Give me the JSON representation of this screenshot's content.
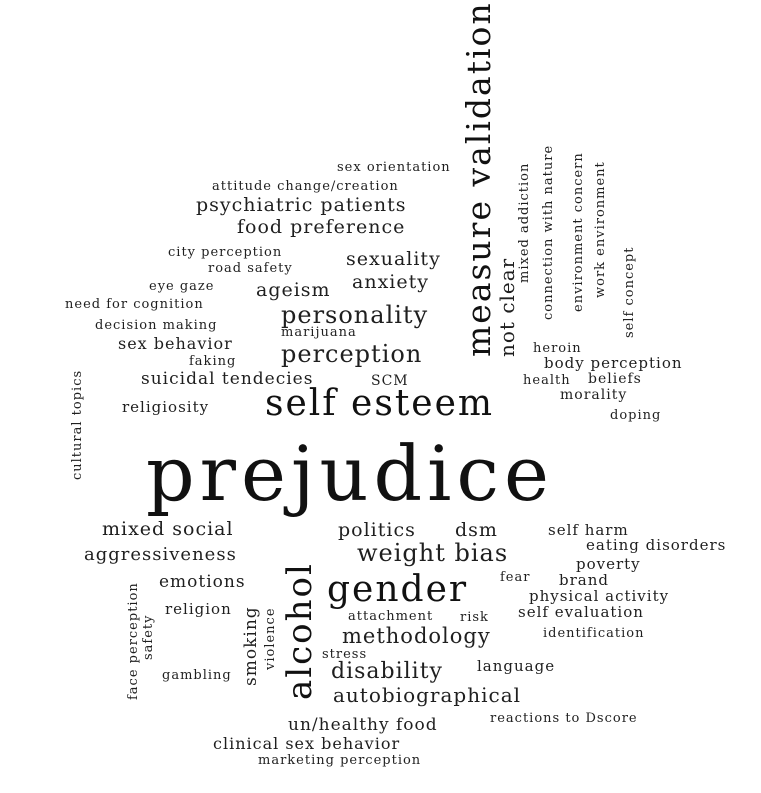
{
  "words": [
    {
      "id": "prejudice",
      "text": "prejudice"
    },
    {
      "id": "self-esteem",
      "text": "self esteem"
    },
    {
      "id": "measure-validation",
      "text": "measure validation"
    },
    {
      "id": "gender",
      "text": "gender"
    },
    {
      "id": "alcohol",
      "text": "alcohol"
    },
    {
      "id": "weight-bias",
      "text": "weight bias"
    },
    {
      "id": "perception",
      "text": "perception"
    },
    {
      "id": "personality",
      "text": "personality"
    },
    {
      "id": "methodology",
      "text": "methodology"
    },
    {
      "id": "disability",
      "text": "disability"
    },
    {
      "id": "autobiographical",
      "text": "autobiographical"
    },
    {
      "id": "psychiatric-patients",
      "text": "psychiatric patients"
    },
    {
      "id": "food-preference",
      "text": "food preference"
    },
    {
      "id": "sexuality",
      "text": "sexuality"
    },
    {
      "id": "anxiety",
      "text": "anxiety"
    },
    {
      "id": "ageism",
      "text": "ageism"
    },
    {
      "id": "suicidal-tendecies",
      "text": "suicidal tendecies"
    },
    {
      "id": "mixed-social",
      "text": "mixed social"
    },
    {
      "id": "politics",
      "text": "politics"
    },
    {
      "id": "dsm",
      "text": "dsm"
    },
    {
      "id": "aggressiveness",
      "text": "aggressiveness"
    },
    {
      "id": "emotions",
      "text": "emotions"
    },
    {
      "id": "not-clear",
      "text": "not clear"
    },
    {
      "id": "smoking",
      "text": "smoking"
    },
    {
      "id": "un-healthy-food",
      "text": "un/healthy food"
    },
    {
      "id": "clinical-sex-behavior",
      "text": "clinical sex behavior"
    },
    {
      "id": "sex-behavior",
      "text": "sex behavior"
    },
    {
      "id": "religiosity",
      "text": "religiosity"
    },
    {
      "id": "religion",
      "text": "religion"
    },
    {
      "id": "language",
      "text": "language"
    },
    {
      "id": "eating-disorders",
      "text": "eating disorders"
    },
    {
      "id": "self-harm",
      "text": "self harm"
    },
    {
      "id": "poverty",
      "text": "poverty"
    },
    {
      "id": "brand",
      "text": "brand"
    },
    {
      "id": "physical-activity",
      "text": "physical activity"
    },
    {
      "id": "self-evaluation",
      "text": "self evaluation"
    },
    {
      "id": "body-perception",
      "text": "body perception"
    },
    {
      "id": "beliefs",
      "text": "beliefs"
    },
    {
      "id": "morality",
      "text": "morality"
    },
    {
      "id": "attitude-change-creation",
      "text": "attitude change/creation"
    },
    {
      "id": "sex-orientation",
      "text": "sex orientation"
    },
    {
      "id": "city-perception",
      "text": "city perception"
    },
    {
      "id": "road-safety",
      "text": "road safety"
    },
    {
      "id": "eye-gaze",
      "text": "eye gaze"
    },
    {
      "id": "need-for-cognition",
      "text": "need for cognition"
    },
    {
      "id": "decision-making",
      "text": "decision making"
    },
    {
      "id": "marijuana",
      "text": "marijuana"
    },
    {
      "id": "faking",
      "text": "faking"
    },
    {
      "id": "scm",
      "text": "SCM"
    },
    {
      "id": "heroin",
      "text": "heroin"
    },
    {
      "id": "health",
      "text": "health"
    },
    {
      "id": "doping",
      "text": "doping"
    },
    {
      "id": "fear",
      "text": "fear"
    },
    {
      "id": "attachment",
      "text": "attachment"
    },
    {
      "id": "risk",
      "text": "risk"
    },
    {
      "id": "identification",
      "text": "identification"
    },
    {
      "id": "stress",
      "text": "stress"
    },
    {
      "id": "gambling",
      "text": "gambling"
    },
    {
      "id": "reactions-to-dscore",
      "text": "reactions to Dscore"
    },
    {
      "id": "marketing-perception",
      "text": "marketing perception"
    },
    {
      "id": "mixed-addiction",
      "text": "mixed addiction"
    },
    {
      "id": "connection-with-nature",
      "text": "connection with nature"
    },
    {
      "id": "environment-concern",
      "text": "environment concern"
    },
    {
      "id": "work-environment",
      "text": "work environment"
    },
    {
      "id": "self-concept",
      "text": "self concept"
    },
    {
      "id": "cultural-topics",
      "text": "cultural topics"
    },
    {
      "id": "face-perception",
      "text": "face perception"
    },
    {
      "id": "safety",
      "text": "safety"
    },
    {
      "id": "violence",
      "text": "violence"
    }
  ]
}
